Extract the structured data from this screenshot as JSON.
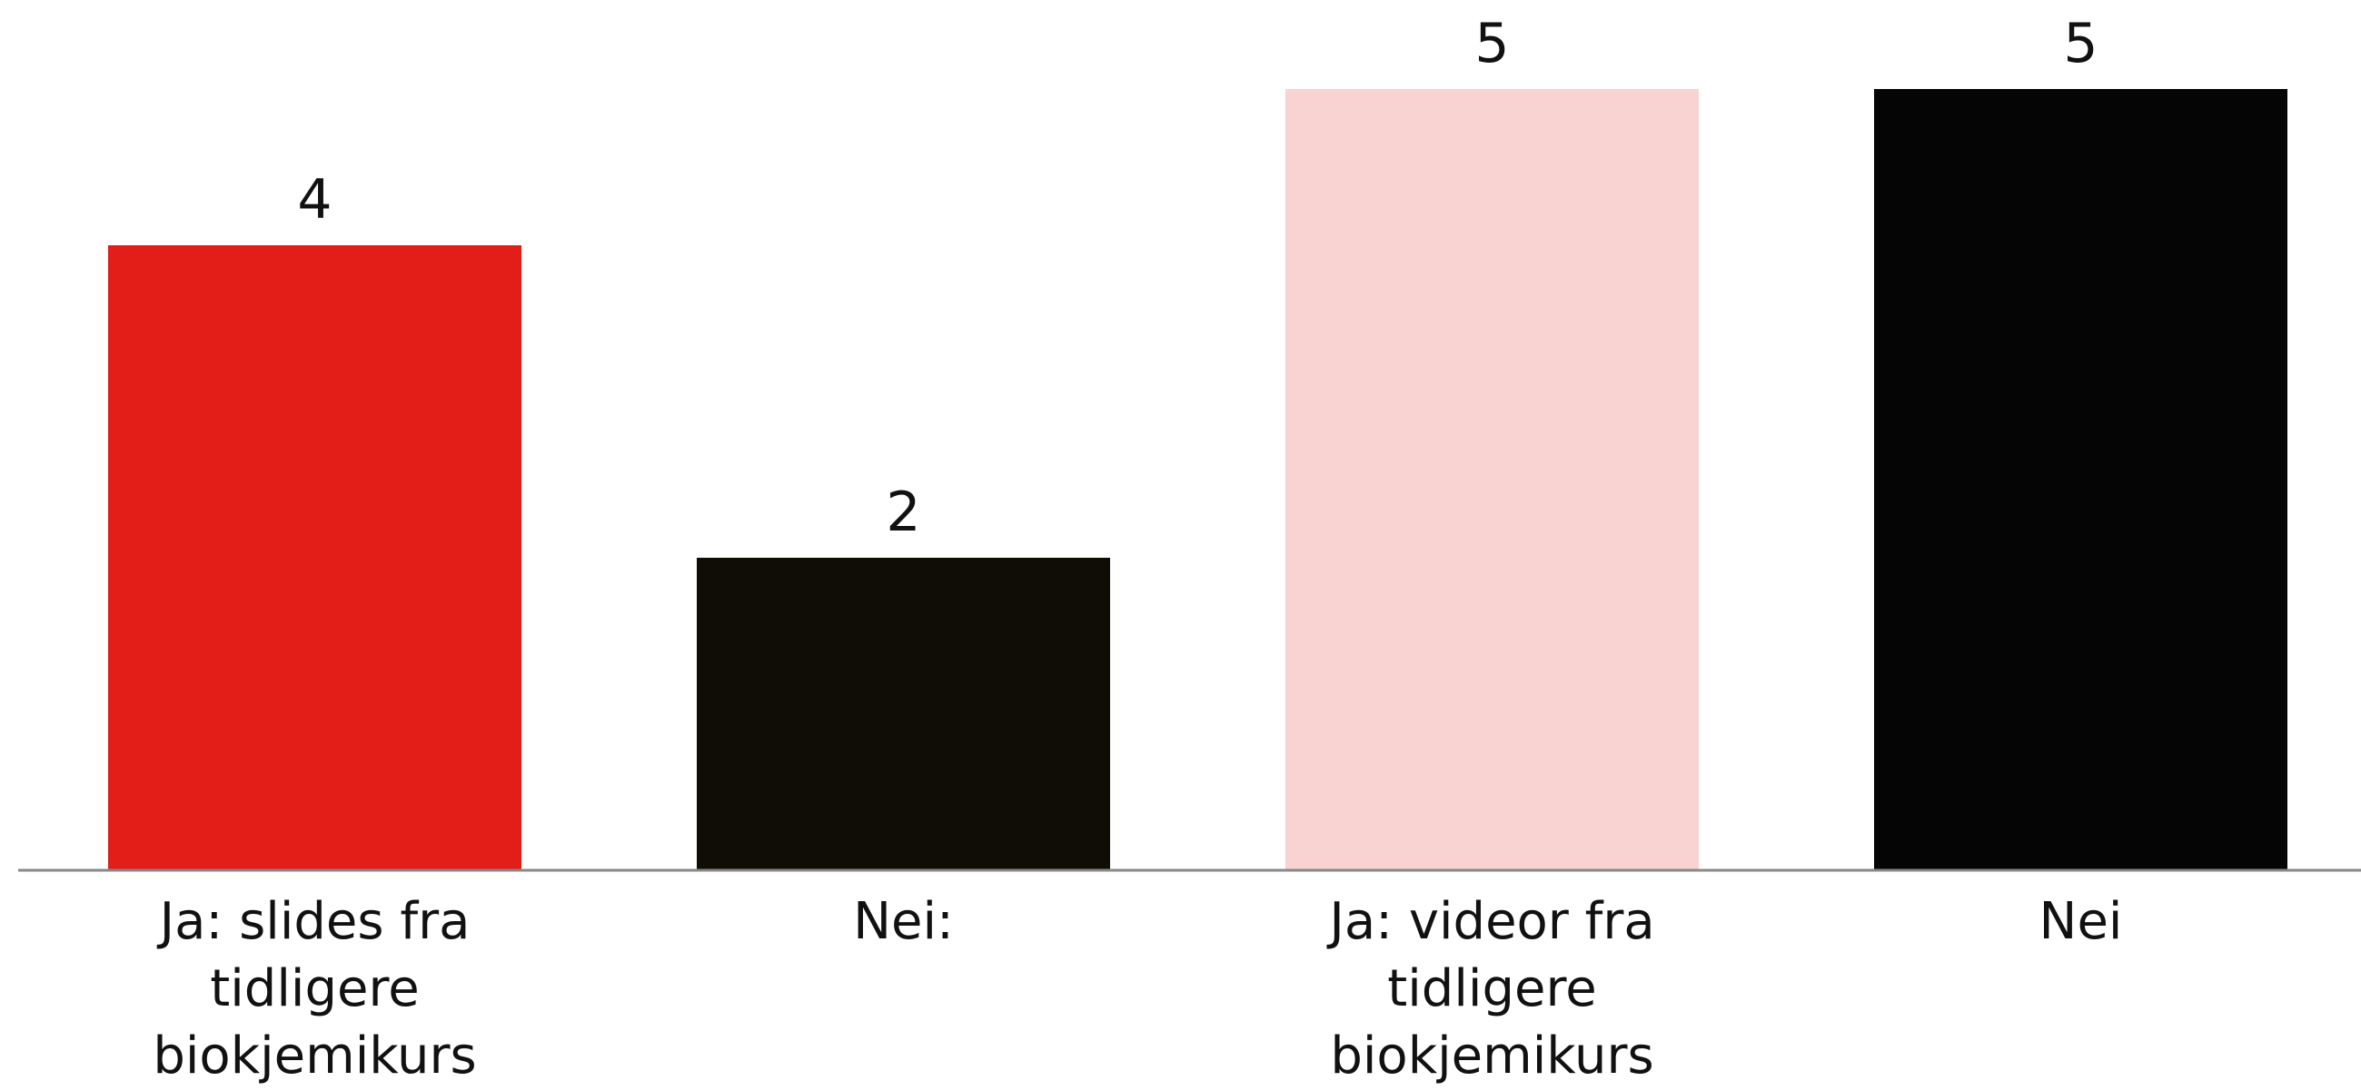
{
  "chart_data": {
    "type": "bar",
    "categories": [
      "Ja: slides fra tidligere biokjemikurs",
      "Nei:",
      "Ja: videor fra tidligere biokjemikurs",
      "Nei"
    ],
    "values": [
      4,
      2,
      5,
      5
    ],
    "colors": [
      "#e31e18",
      "#0f0d06",
      "#f8d3d1",
      "#050505"
    ]
  }
}
